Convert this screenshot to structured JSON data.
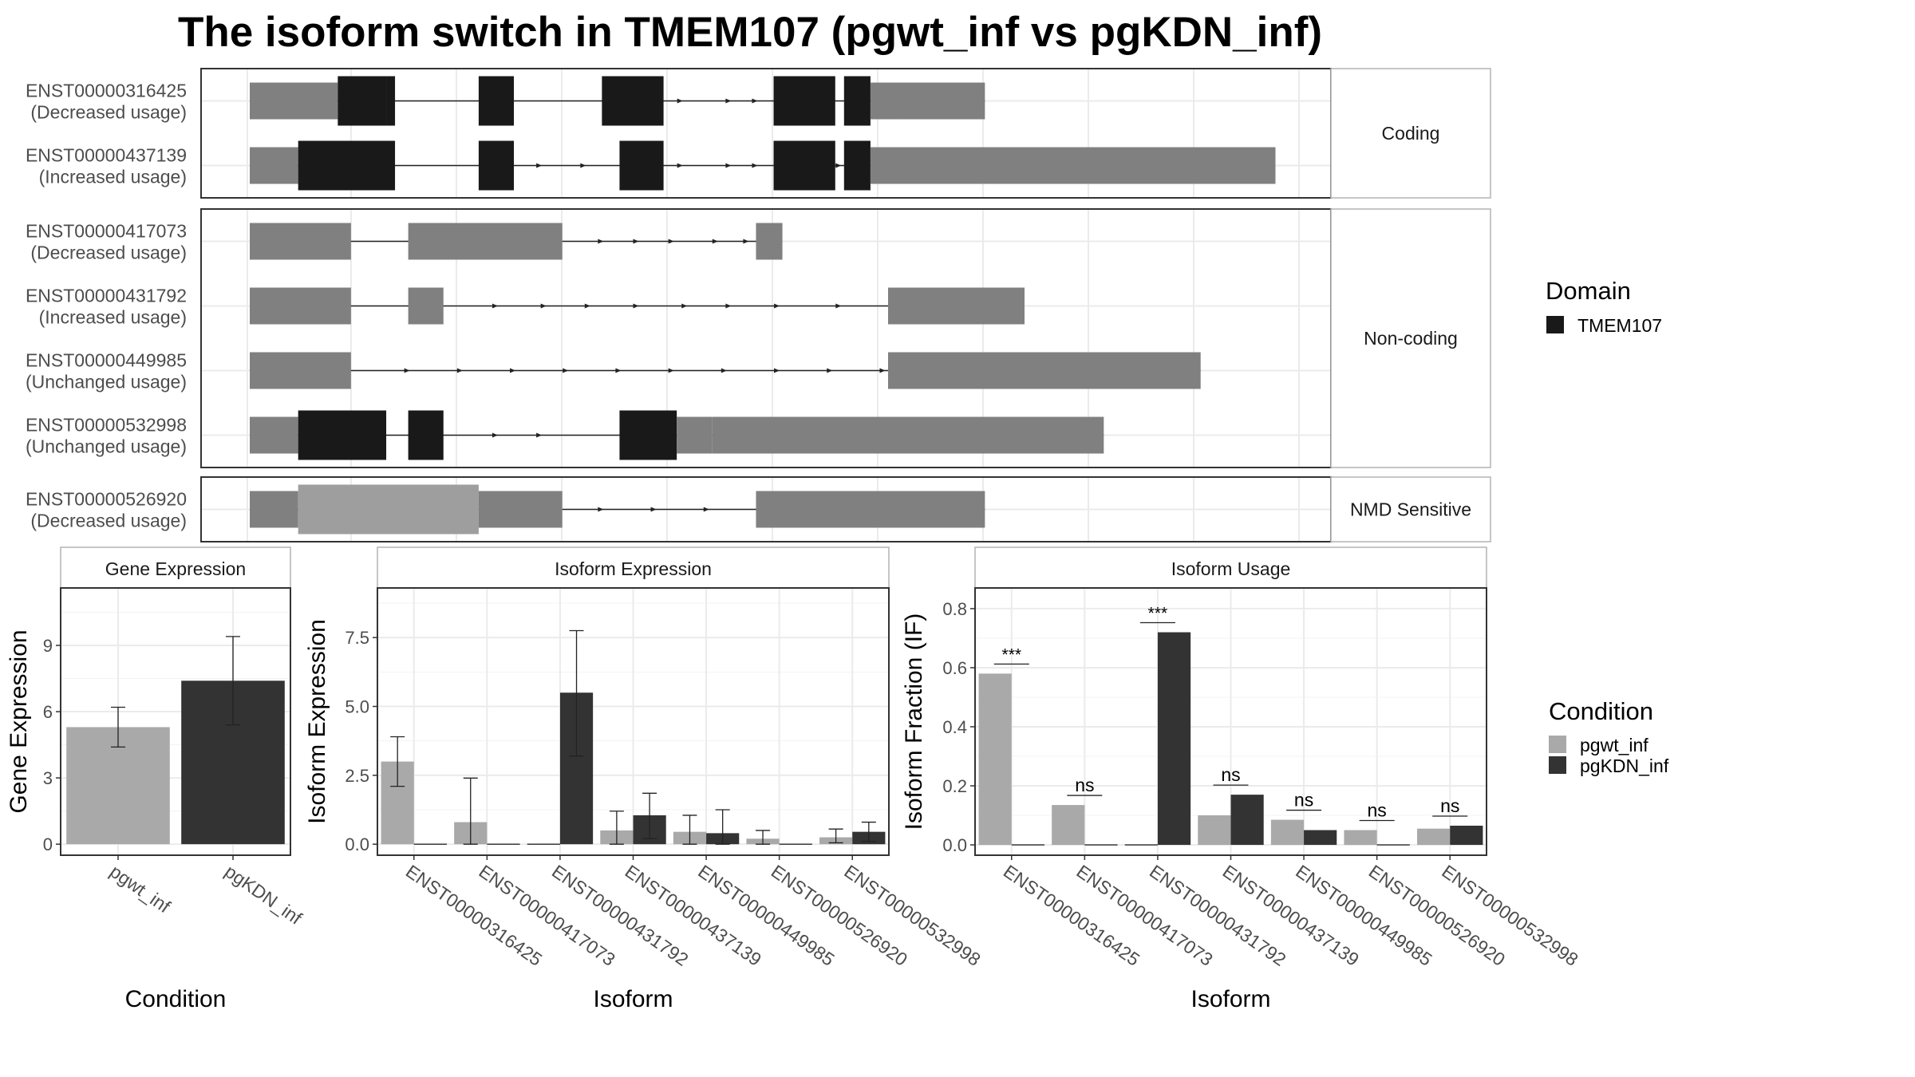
{
  "title": "The isoform switch in TMEM107 (pgwt_inf vs pgKDN_inf)",
  "colors": {
    "utr": "#808080",
    "cds": "#191919",
    "nmd_cds": "#9e9e9e",
    "pgwt": "#a9a9a9",
    "pgkdn": "#333333",
    "grid": "#ebebeb",
    "panel_border": "#333333",
    "strip_border": "#b3b3b3"
  },
  "structure": {
    "groups": [
      {
        "label": "Coding",
        "transcripts": [
          {
            "id": "ENST00000316425",
            "usage": "(Decreased usage)",
            "exons": [
              [
                0,
                200
              ],
              [
                200,
                310,
                "cds"
              ],
              [
                310,
                330,
                "cds"
              ],
              [
                520,
                600,
                "cds"
              ],
              [
                800,
                940,
                "cds"
              ],
              [
                1190,
                1330,
                "cds"
              ],
              [
                1350,
                1410,
                "cds"
              ],
              [
                1410,
                1470
              ],
              [
                1470,
                1670
              ]
            ],
            "arrows": [
              980,
              1090,
              1150
            ]
          },
          {
            "id": "ENST00000437139",
            "usage": "(Increased usage)",
            "exons": [
              [
                0,
                110
              ],
              [
                110,
                330,
                "cds"
              ],
              [
                520,
                600,
                "cds"
              ],
              [
                840,
                940,
                "cds"
              ],
              [
                1190,
                1330,
                "cds"
              ],
              [
                1350,
                1410,
                "cds"
              ],
              [
                1410,
                2330
              ]
            ],
            "arrows": [
              660,
              760,
              980,
              1090,
              1150,
              1340
            ]
          }
        ]
      },
      {
        "label": "Non-coding",
        "transcripts": [
          {
            "id": "ENST00000417073",
            "usage": "(Decreased usage)",
            "exons": [
              [
                0,
                230
              ],
              [
                360,
                710
              ],
              [
                1150,
                1210
              ]
            ],
            "arrows": [
              800,
              880,
              960,
              1060,
              1130
            ]
          },
          {
            "id": "ENST00000431792",
            "usage": "(Increased usage)",
            "exons": [
              [
                0,
                230
              ],
              [
                360,
                440
              ],
              [
                1450,
                1760
              ]
            ],
            "arrows": [
              560,
              670,
              770,
              880,
              990,
              1090,
              1200,
              1340
            ]
          },
          {
            "id": "ENST00000449985",
            "usage": "(Unchanged usage)",
            "exons": [
              [
                0,
                230
              ],
              [
                1450,
                2160
              ]
            ],
            "arrows": [
              360,
              480,
              600,
              720,
              840,
              960,
              1080,
              1200,
              1320,
              1440
            ]
          },
          {
            "id": "ENST00000532998",
            "usage": "(Unchanged usage)",
            "exons": [
              [
                0,
                110
              ],
              [
                110,
                310,
                "cds"
              ],
              [
                360,
                440,
                "cds"
              ],
              [
                840,
                970,
                "cds"
              ],
              [
                970,
                1050
              ],
              [
                1050,
                1940
              ]
            ],
            "arrows": [
              560,
              660
            ]
          }
        ]
      },
      {
        "label": "NMD Sensitive",
        "transcripts": [
          {
            "id": "ENST00000526920",
            "usage": "(Decreased usage)",
            "exons": [
              [
                0,
                110
              ],
              [
                110,
                520,
                "nmd"
              ],
              [
                520,
                710
              ],
              [
                1150,
                1670
              ]
            ],
            "arrows": [
              800,
              920,
              1040
            ]
          }
        ]
      }
    ],
    "legend_title": "Domain",
    "legend_items": [
      "TMEM107"
    ]
  },
  "chart_data": [
    {
      "type": "bar",
      "title": "Gene Expression",
      "xlabel": "Condition",
      "ylabel": "Gene Expression",
      "categories": [
        "pgwt_inf",
        "pgKDN_inf"
      ],
      "values": [
        5.3,
        7.4
      ],
      "error_low": [
        4.4,
        5.4
      ],
      "error_high": [
        6.2,
        9.4
      ],
      "ylim": [
        -0.5,
        11.6
      ],
      "yticks": [
        0,
        3,
        6,
        9
      ]
    },
    {
      "type": "bar",
      "title": "Isoform Expression",
      "xlabel": "Isoform",
      "ylabel": "Isoform Expression",
      "categories": [
        "ENST00000316425",
        "ENST00000417073",
        "ENST00000431792",
        "ENST00000437139",
        "ENST00000449985",
        "ENST00000526920",
        "ENST00000532998"
      ],
      "series": [
        {
          "name": "pgwt_inf",
          "values": [
            3.0,
            0.8,
            0.0,
            0.5,
            0.45,
            0.2,
            0.25
          ],
          "error_low": [
            2.1,
            0.0,
            0.0,
            0.0,
            0.0,
            0.0,
            0.05
          ],
          "error_high": [
            3.9,
            2.4,
            0.0,
            1.2,
            1.05,
            0.5,
            0.55
          ]
        },
        {
          "name": "pgKDN_inf",
          "values": [
            0.0,
            0.0,
            5.5,
            1.05,
            0.4,
            0.0,
            0.45
          ],
          "error_low": [
            0.0,
            0.0,
            3.2,
            0.2,
            0.0,
            0.0,
            0.1
          ],
          "error_high": [
            0.0,
            0.0,
            7.75,
            1.85,
            1.25,
            0.0,
            0.8
          ]
        }
      ],
      "ylim": [
        -0.4,
        9.3
      ],
      "yticks": [
        0.0,
        2.5,
        5.0,
        7.5
      ]
    },
    {
      "type": "bar",
      "title": "Isoform Usage",
      "xlabel": "Isoform",
      "ylabel": "Isoform Fraction (IF)",
      "categories": [
        "ENST00000316425",
        "ENST00000417073",
        "ENST00000431792",
        "ENST00000437139",
        "ENST00000449985",
        "ENST00000526920",
        "ENST00000532998"
      ],
      "series": [
        {
          "name": "pgwt_inf",
          "values": [
            0.58,
            0.135,
            0.0,
            0.1,
            0.085,
            0.05,
            0.055
          ]
        },
        {
          "name": "pgKDN_inf",
          "values": [
            0.0,
            0.0,
            0.72,
            0.17,
            0.05,
            0.0,
            0.065
          ]
        }
      ],
      "significance": [
        "***",
        "ns",
        "***",
        "ns",
        "ns",
        "ns",
        "ns"
      ],
      "ylim": [
        -0.035,
        0.87
      ],
      "yticks": [
        0.0,
        0.2,
        0.4,
        0.6,
        0.8
      ]
    }
  ],
  "condition_legend": {
    "title": "Condition",
    "items": [
      "pgwt_inf",
      "pgKDN_inf"
    ]
  }
}
